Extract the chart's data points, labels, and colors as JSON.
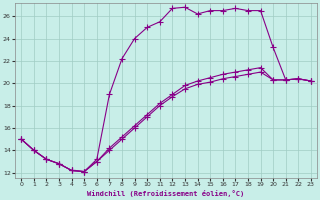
{
  "xlabel": "Windchill (Refroidissement éolien,°C)",
  "background_color": "#c8eee8",
  "grid_color": "#a0ccc4",
  "line_color": "#880088",
  "xlim": [
    -0.5,
    23.5
  ],
  "ylim": [
    11.5,
    27.2
  ],
  "xticks": [
    0,
    1,
    2,
    3,
    4,
    5,
    6,
    7,
    8,
    9,
    10,
    11,
    12,
    13,
    14,
    15,
    16,
    17,
    18,
    19,
    20,
    21,
    22,
    23
  ],
  "yticks": [
    12,
    14,
    16,
    18,
    20,
    22,
    24,
    26
  ],
  "line1_x": [
    0,
    1,
    2,
    3,
    4,
    5,
    6,
    7,
    8,
    9,
    10,
    11,
    12,
    13,
    14,
    15,
    16,
    17,
    18,
    19,
    20,
    21,
    22,
    23
  ],
  "line1_y": [
    15.0,
    14.0,
    13.2,
    12.8,
    12.2,
    12.1,
    13.2,
    19.0,
    22.2,
    24.0,
    25.0,
    25.5,
    26.7,
    26.8,
    26.2,
    26.5,
    26.5,
    26.7,
    26.5,
    26.5,
    23.2,
    20.3,
    20.4,
    20.2
  ],
  "line2_x": [
    0,
    1,
    2,
    3,
    4,
    5,
    6,
    7,
    8,
    9,
    10,
    11,
    12,
    13,
    14,
    15,
    16,
    17,
    18,
    19,
    20,
    21,
    22,
    23
  ],
  "line2_y": [
    15.0,
    14.0,
    13.2,
    12.8,
    12.2,
    12.1,
    13.0,
    14.2,
    15.2,
    16.2,
    17.2,
    18.2,
    19.0,
    19.8,
    20.2,
    20.5,
    20.8,
    21.0,
    21.2,
    21.4,
    20.3,
    20.3,
    20.4,
    20.2
  ],
  "line3_x": [
    0,
    1,
    2,
    3,
    4,
    5,
    6,
    7,
    8,
    9,
    10,
    11,
    12,
    13,
    14,
    15,
    16,
    17,
    18,
    19,
    20,
    21,
    22,
    23
  ],
  "line3_y": [
    15.0,
    14.0,
    13.2,
    12.8,
    12.2,
    12.1,
    13.0,
    14.0,
    15.0,
    16.0,
    17.0,
    18.0,
    18.8,
    19.5,
    19.9,
    20.1,
    20.4,
    20.6,
    20.8,
    21.0,
    20.3,
    20.3,
    20.4,
    20.2
  ]
}
